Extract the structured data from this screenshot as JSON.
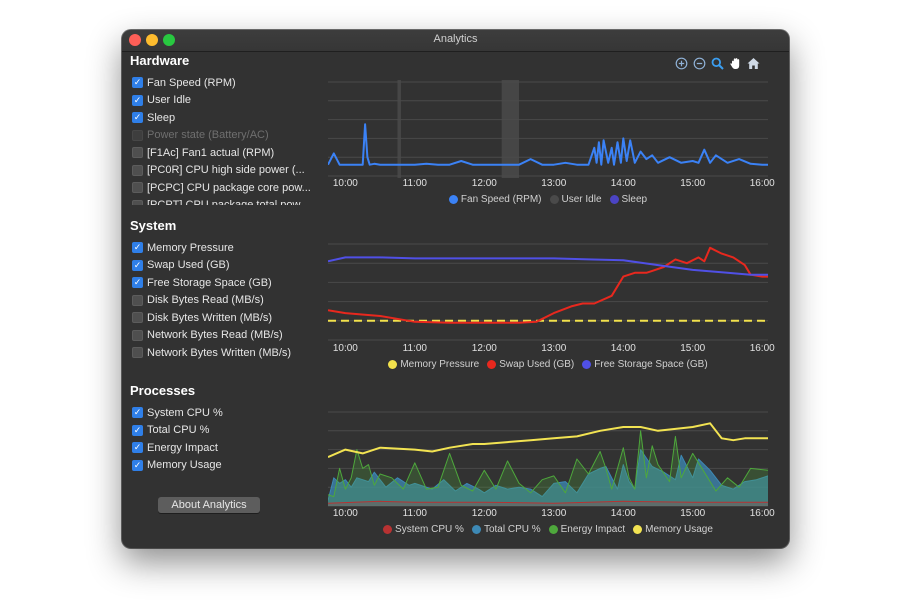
{
  "window": {
    "title": "Analytics"
  },
  "sidebar": {
    "hardware": {
      "title": "Hardware",
      "items": [
        {
          "label": "Fan Speed (RPM)",
          "checked": true,
          "enabled": true
        },
        {
          "label": "User Idle",
          "checked": true,
          "enabled": true
        },
        {
          "label": "Sleep",
          "checked": true,
          "enabled": true
        },
        {
          "label": "Power state (Battery/AC)",
          "checked": false,
          "enabled": false
        },
        {
          "label": "[F1Ac] Fan1 actual (RPM)",
          "checked": false,
          "enabled": true
        },
        {
          "label": "[PC0R] CPU high side power (...",
          "checked": false,
          "enabled": true
        },
        {
          "label": "[PCPC] CPU package core pow...",
          "checked": false,
          "enabled": true
        },
        {
          "label": "[PCPT] CPU package total pow...",
          "checked": false,
          "enabled": true
        }
      ]
    },
    "system": {
      "title": "System",
      "items": [
        {
          "label": "Memory Pressure",
          "checked": true,
          "enabled": true
        },
        {
          "label": "Swap Used (GB)",
          "checked": true,
          "enabled": true
        },
        {
          "label": "Free Storage Space (GB)",
          "checked": true,
          "enabled": true
        },
        {
          "label": "Disk Bytes Read (MB/s)",
          "checked": false,
          "enabled": true
        },
        {
          "label": "Disk Bytes Written (MB/s)",
          "checked": false,
          "enabled": true
        },
        {
          "label": "Network Bytes Read (MB/s)",
          "checked": false,
          "enabled": true
        },
        {
          "label": "Network Bytes Written (MB/s)",
          "checked": false,
          "enabled": true
        }
      ]
    },
    "processes": {
      "title": "Processes",
      "items": [
        {
          "label": "System CPU %",
          "checked": true,
          "enabled": true
        },
        {
          "label": "Total CPU %",
          "checked": true,
          "enabled": true
        },
        {
          "label": "Energy Impact",
          "checked": true,
          "enabled": true
        },
        {
          "label": "Memory Usage",
          "checked": true,
          "enabled": true
        }
      ]
    },
    "about_button": "About Analytics"
  },
  "toolbar": {
    "icons": [
      "zoom-in-icon",
      "zoom-out-icon",
      "zoom-magnify-icon",
      "pan-hand-icon",
      "home-icon"
    ]
  },
  "colors": {
    "fan_speed": "#3b82f6",
    "user_idle": "#4a4a4a",
    "sleep": "#4b44c4",
    "memory_pressure": "#f2e14c",
    "swap_used": "#e8281e",
    "free_storage": "#5050e6",
    "system_cpu": "#b83232",
    "total_cpu": "#3d89b5",
    "energy_impact": "#4ea83c",
    "memory_usage": "#f2e352"
  },
  "chart_data": [
    {
      "type": "line",
      "x_ticks": [
        "10:00",
        "11:00",
        "12:00",
        "13:00",
        "14:00",
        "15:00",
        "16:00"
      ],
      "xlim": [
        "09:45",
        "16:05"
      ],
      "ylim": [
        0,
        100
      ],
      "grid": true,
      "legend_position": "bottom",
      "series": [
        {
          "name": "Fan Speed (RPM)",
          "color": "#3b82f6",
          "x": [
            "09:45",
            "09:50",
            "09:55",
            "10:00",
            "10:05",
            "10:15",
            "10:17",
            "10:19",
            "10:21",
            "10:25",
            "10:30",
            "10:40",
            "10:50",
            "11:00",
            "11:10",
            "11:20",
            "11:30",
            "11:40",
            "11:50",
            "12:00",
            "12:10",
            "12:20",
            "12:30",
            "12:40",
            "12:50",
            "13:00",
            "13:10",
            "13:20",
            "13:30",
            "13:35",
            "13:37",
            "13:39",
            "13:41",
            "13:43",
            "13:47",
            "13:50",
            "13:52",
            "13:55",
            "13:58",
            "14:00",
            "14:03",
            "14:06",
            "14:10",
            "14:15",
            "14:20",
            "14:25",
            "14:30",
            "14:40",
            "14:50",
            "15:00",
            "15:05",
            "15:10",
            "15:15",
            "15:20",
            "15:30",
            "15:40",
            "15:50",
            "16:00",
            "16:05"
          ],
          "y": [
            12,
            24,
            12,
            12,
            12,
            12,
            55,
            20,
            12,
            13,
            12,
            12,
            12,
            12,
            13,
            12,
            12,
            16,
            12,
            12,
            12,
            12,
            12,
            18,
            12,
            12,
            14,
            12,
            12,
            30,
            14,
            36,
            12,
            38,
            14,
            30,
            12,
            36,
            14,
            40,
            16,
            38,
            14,
            26,
            18,
            22,
            14,
            20,
            14,
            16,
            14,
            28,
            14,
            22,
            14,
            18,
            13,
            12,
            12
          ]
        }
      ],
      "bands": [
        {
          "name": "User Idle",
          "color": "#4a4a4a",
          "x": [
            [
              "10:45",
              "10:48"
            ],
            [
              "12:15",
              "12:30"
            ]
          ]
        },
        {
          "name": "Sleep",
          "color": "#4b44c4",
          "x": []
        }
      ]
    },
    {
      "type": "line",
      "x_ticks": [
        "10:00",
        "11:00",
        "12:00",
        "13:00",
        "14:00",
        "15:00",
        "16:00"
      ],
      "xlim": [
        "09:45",
        "16:05"
      ],
      "ylim": [
        0,
        100
      ],
      "grid": true,
      "legend_position": "bottom",
      "series": [
        {
          "name": "Memory Pressure",
          "color": "#f2e14c",
          "dashed": true,
          "x": [
            "09:45",
            "16:05"
          ],
          "y": [
            20,
            20
          ]
        },
        {
          "name": "Swap Used (GB)",
          "color": "#e8281e",
          "x": [
            "09:45",
            "10:00",
            "10:30",
            "11:00",
            "11:30",
            "12:00",
            "12:30",
            "12:45",
            "13:00",
            "13:15",
            "13:25",
            "13:35",
            "13:50",
            "14:00",
            "14:10",
            "14:20",
            "14:25",
            "14:35",
            "14:45",
            "14:55",
            "15:05",
            "15:10",
            "15:15",
            "15:25",
            "15:35",
            "15:45",
            "15:50",
            "16:00",
            "16:05"
          ],
          "y": [
            31,
            28,
            25,
            19,
            18,
            18,
            18,
            19,
            28,
            35,
            38,
            38,
            46,
            66,
            70,
            70,
            72,
            76,
            84,
            80,
            86,
            82,
            96,
            90,
            86,
            78,
            68,
            66,
            66
          ]
        },
        {
          "name": "Free Storage Space (GB)",
          "color": "#5050e6",
          "x": [
            "09:45",
            "10:00",
            "10:30",
            "11:00",
            "12:00",
            "13:00",
            "13:30",
            "14:00",
            "14:30",
            "15:00",
            "15:30",
            "15:50",
            "16:05"
          ],
          "y": [
            82,
            86,
            86,
            85,
            85,
            85,
            84,
            83,
            78,
            73,
            70,
            68,
            68
          ]
        }
      ]
    },
    {
      "type": "area",
      "x_ticks": [
        "10:00",
        "11:00",
        "12:00",
        "13:00",
        "14:00",
        "15:00",
        "16:00"
      ],
      "xlim": [
        "09:45",
        "16:05"
      ],
      "ylim": [
        0,
        100
      ],
      "grid": true,
      "legend_position": "bottom",
      "series": [
        {
          "name": "Total CPU %",
          "color": "#3d89b5",
          "x": [
            "09:45",
            "09:50",
            "09:55",
            "10:00",
            "10:05",
            "10:10",
            "10:20",
            "10:25",
            "10:35",
            "10:45",
            "10:55",
            "11:00",
            "11:15",
            "11:25",
            "11:35",
            "11:45",
            "11:55",
            "12:00",
            "12:10",
            "12:20",
            "12:30",
            "12:40",
            "12:50",
            "13:00",
            "13:10",
            "13:20",
            "13:30",
            "13:40",
            "13:45",
            "13:55",
            "14:00",
            "14:05",
            "14:10",
            "14:15",
            "14:25",
            "14:35",
            "14:45",
            "14:50",
            "15:00",
            "15:05",
            "15:15",
            "15:25",
            "15:35",
            "15:45",
            "15:55",
            "16:05"
          ],
          "y": [
            6,
            30,
            24,
            28,
            20,
            30,
            26,
            36,
            20,
            30,
            22,
            24,
            18,
            28,
            16,
            24,
            18,
            14,
            22,
            18,
            20,
            18,
            10,
            24,
            26,
            14,
            34,
            40,
            42,
            18,
            44,
            26,
            18,
            60,
            42,
            36,
            28,
            54,
            30,
            50,
            38,
            22,
            18,
            26,
            28,
            32
          ]
        },
        {
          "name": "Energy Impact",
          "color": "#4ea83c",
          "x": [
            "09:45",
            "09:50",
            "09:55",
            "10:00",
            "10:05",
            "10:10",
            "10:15",
            "10:20",
            "10:25",
            "10:30",
            "10:40",
            "10:50",
            "11:00",
            "11:10",
            "11:20",
            "11:30",
            "11:40",
            "11:50",
            "12:00",
            "12:10",
            "12:20",
            "12:30",
            "12:40",
            "12:50",
            "13:00",
            "13:10",
            "13:20",
            "13:30",
            "13:40",
            "13:45",
            "13:50",
            "14:00",
            "14:05",
            "14:10",
            "14:15",
            "14:20",
            "14:25",
            "14:30",
            "14:40",
            "14:45",
            "14:50",
            "15:00",
            "15:10",
            "15:20",
            "15:30",
            "15:40",
            "15:50",
            "16:05"
          ],
          "y": [
            12,
            10,
            40,
            18,
            30,
            60,
            40,
            44,
            22,
            34,
            30,
            18,
            46,
            18,
            20,
            56,
            22,
            16,
            38,
            18,
            48,
            24,
            14,
            28,
            32,
            14,
            50,
            34,
            58,
            40,
            18,
            62,
            30,
            18,
            80,
            30,
            64,
            44,
            26,
            74,
            30,
            56,
            36,
            16,
            30,
            20,
            40,
            38
          ]
        },
        {
          "name": "System CPU %",
          "color": "#b83232",
          "x": [
            "09:45",
            "10:30",
            "11:00",
            "12:00",
            "13:00",
            "14:00",
            "15:00",
            "16:05"
          ],
          "y": [
            3,
            5,
            4,
            4,
            3,
            5,
            4,
            4
          ]
        },
        {
          "name": "Memory Usage",
          "color": "#f2e352",
          "x": [
            "09:45",
            "10:00",
            "10:15",
            "10:30",
            "11:00",
            "11:15",
            "11:30",
            "11:50",
            "12:00",
            "12:20",
            "12:40",
            "13:00",
            "13:20",
            "13:40",
            "14:00",
            "14:15",
            "14:30",
            "14:45",
            "15:00",
            "15:15",
            "15:25",
            "15:35",
            "15:45",
            "16:05"
          ],
          "y": [
            52,
            60,
            56,
            62,
            60,
            58,
            62,
            66,
            66,
            68,
            70,
            72,
            74,
            80,
            84,
            84,
            80,
            82,
            84,
            88,
            72,
            70,
            72,
            72
          ]
        }
      ]
    }
  ]
}
